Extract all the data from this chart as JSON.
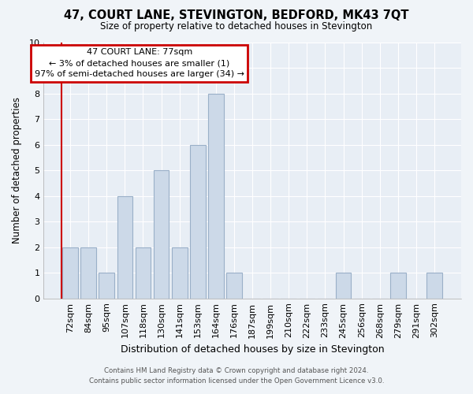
{
  "title": "47, COURT LANE, STEVINGTON, BEDFORD, MK43 7QT",
  "subtitle": "Size of property relative to detached houses in Stevington",
  "xlabel": "Distribution of detached houses by size in Stevington",
  "ylabel": "Number of detached properties",
  "categories": [
    "72sqm",
    "84sqm",
    "95sqm",
    "107sqm",
    "118sqm",
    "130sqm",
    "141sqm",
    "153sqm",
    "164sqm",
    "176sqm",
    "187sqm",
    "199sqm",
    "210sqm",
    "222sqm",
    "233sqm",
    "245sqm",
    "256sqm",
    "268sqm",
    "279sqm",
    "291sqm",
    "302sqm"
  ],
  "values": [
    2,
    2,
    1,
    4,
    2,
    5,
    2,
    6,
    8,
    1,
    0,
    0,
    0,
    0,
    0,
    1,
    0,
    0,
    1,
    0,
    1
  ],
  "bar_color": "#ccd9e8",
  "bar_edge_color": "#9ab0c8",
  "annotation_title": "47 COURT LANE: 77sqm",
  "annotation_line1": "← 3% of detached houses are smaller (1)",
  "annotation_line2": "97% of semi-detached houses are larger (34) →",
  "annotation_box_color": "#cc0000",
  "ylim": [
    0,
    10
  ],
  "footer_line1": "Contains HM Land Registry data © Crown copyright and database right 2024.",
  "footer_line2": "Contains public sector information licensed under the Open Government Licence v3.0.",
  "bg_color": "#f0f4f8",
  "plot_bg_color": "#e8eef5"
}
